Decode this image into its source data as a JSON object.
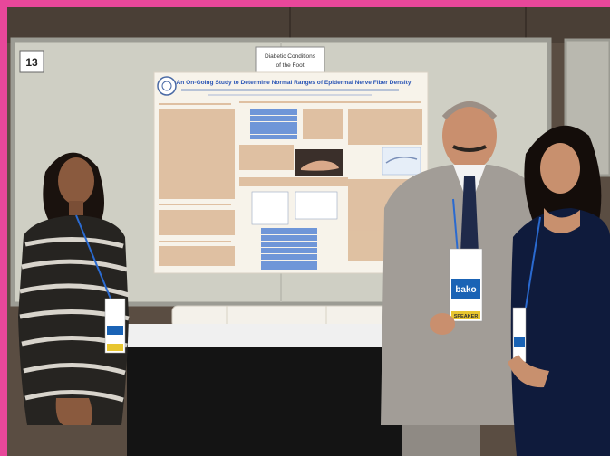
{
  "board": {
    "number": "13",
    "category_line1": "Diabetic Conditions",
    "category_line2": "of the Foot"
  },
  "poster": {
    "title": "An On-Going Study to Determine Normal Ranges of Epidermal Nerve Fiber Density"
  },
  "badge": {
    "brand": "bako",
    "ribbon": "SPEAKER"
  },
  "colors": {
    "frame": "#e8479a",
    "wall": "#5a4d42",
    "board": "#cfcfc4",
    "poster_bg": "#f7f3ea",
    "poster_title": "#2a55b5",
    "table_blue": "#6f96d8",
    "table_cloth": "#111111",
    "suit": "#a29d97"
  }
}
